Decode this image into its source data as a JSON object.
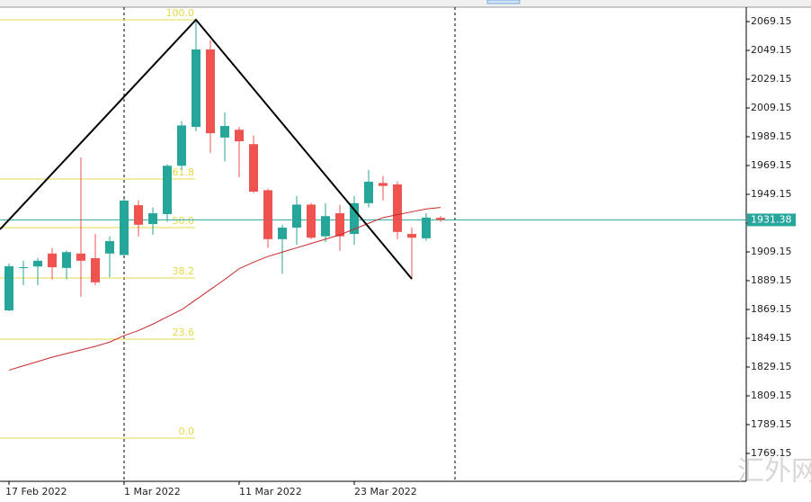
{
  "chart_data": {
    "type": "candlestick",
    "categories": [
      "17 Feb 2022",
      null,
      null,
      null,
      null,
      null,
      null,
      null,
      "1 Mar 2022",
      null,
      null,
      null,
      null,
      null,
      null,
      null,
      "11 Mar 2022",
      null,
      null,
      null,
      null,
      null,
      null,
      null,
      "23 Mar 2022",
      null,
      null,
      null,
      null,
      null,
      null
    ],
    "open": [
      1868.5,
      1898,
      1899,
      1908,
      1898,
      1908,
      1904.8,
      1908,
      1907,
      1941.6,
      1928.5,
      1935.4,
      1969,
      1996,
      2049.8,
      1988.6,
      1994,
      1984,
      1952,
      1918,
      1926,
      1942,
      1920,
      1936,
      1921.6,
      1943,
      1957,
      1956,
      1921.6,
      1918.6,
      1932.8
    ],
    "high": [
      1901,
      1903,
      1905,
      1912,
      1910,
      1974.8,
      1921.6,
      1920,
      1946,
      1945,
      1940,
      1970,
      2000,
      2069,
      2056,
      2006,
      1996,
      1990,
      1953,
      1928,
      1948,
      1943,
      1943,
      1942,
      1948,
      1966,
      1962,
      1958,
      1926,
      1936,
      1934
    ],
    "low": [
      1868,
      1886,
      1886,
      1890,
      1890,
      1878,
      1886,
      1891.6,
      1907,
      1920,
      1921,
      1930,
      1966,
      1993,
      1978,
      1972,
      1961,
      1950,
      1912,
      1894,
      1914,
      1918,
      1916,
      1910,
      1914,
      1940,
      1945,
      1918,
      1890,
      1917,
      1930
    ],
    "close": [
      1899.2,
      1898.5,
      1903,
      1898.5,
      1909,
      1903,
      1888,
      1916.6,
      1944.8,
      1928,
      1936,
      1969,
      1997,
      2049.8,
      1991.6,
      1996.6,
      1986,
      1951,
      1918,
      1926,
      1942,
      1919,
      1934,
      1920,
      1943,
      1957.9,
      1955,
      1923,
      1919,
      1933,
      1931.4
    ],
    "up_color": "#26a69a",
    "down_color": "#ef5350",
    "ma": {
      "color": "#c62828",
      "values": [
        1827,
        1830,
        1833,
        1836,
        1838.5,
        1841,
        1843.5,
        1846.5,
        1851,
        1854.5,
        1859,
        1864,
        1869,
        1876,
        1883,
        1890,
        1897.5,
        1902,
        1906,
        1909,
        1912,
        1915,
        1918,
        1921,
        1925,
        1929,
        1933,
        1935,
        1937,
        1939,
        1940
      ]
    },
    "trend_line": {
      "color": "#000000",
      "x": [
        -0.625,
        13,
        28
      ],
      "values": [
        1924.8,
        2070.4,
        1890.4
      ]
    },
    "fib_levels": {
      "color": "#e6d84a",
      "levels": [
        {
          "value": 2070.4,
          "label": "100.0"
        },
        {
          "value": 1959.8,
          "label": "61.8"
        },
        {
          "value": 1926,
          "label": "50.0"
        },
        {
          "value": 1891,
          "label": "38.2"
        },
        {
          "value": 1848.5,
          "label": "23.6"
        },
        {
          "value": 1779.8,
          "label": "0.0"
        }
      ]
    },
    "current_price": 1931.38,
    "current_price_color": "#26a69a",
    "ylim": [
      1749.775,
      2079.15
    ],
    "yticks": [
      {
        "value": 2069.15,
        "label": "2069.15"
      },
      {
        "value": 2049.15,
        "label": "2049.15"
      },
      {
        "value": 2029.15,
        "label": "2029.15"
      },
      {
        "value": 2009.15,
        "label": "2009.15"
      },
      {
        "value": 1989.15,
        "label": "1989.15"
      },
      {
        "value": 1969.15,
        "label": "1969.15"
      },
      {
        "value": 1949.15,
        "label": "1949.15"
      },
      {
        "value": 1929.15,
        "label": "1929.15"
      },
      {
        "value": 1909.15,
        "label": "1909.15"
      },
      {
        "value": 1889.15,
        "label": "1889.15"
      },
      {
        "value": 1869.15,
        "label": "1869.15"
      },
      {
        "value": 1849.15,
        "label": "1849.15"
      },
      {
        "value": 1829.15,
        "label": "1829.15"
      },
      {
        "value": 1809.15,
        "label": "1809.15"
      },
      {
        "value": 1789.15,
        "label": "1789.15"
      },
      {
        "value": 1769.15,
        "label": "1769.15"
      }
    ],
    "watermark": "汇外网"
  }
}
